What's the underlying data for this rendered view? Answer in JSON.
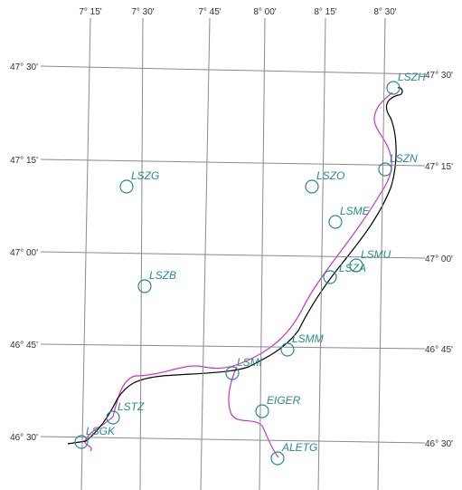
{
  "map": {
    "longitudes": [
      "7° 15'",
      "7° 30'",
      "7° 45'",
      "8° 00'",
      "8° 15'",
      "8° 30'"
    ],
    "latitudes": [
      "47° 30'",
      "47° 15'",
      "47° 00'",
      "46° 45'",
      "46° 30'"
    ],
    "waypoints": [
      "LSZH",
      "LSZN",
      "LSZG",
      "LSZO",
      "LSME",
      "LSMU",
      "LSZA",
      "LSZB",
      "LSMM",
      "LSMI",
      "EIGER",
      "LSTZ",
      "LSGK",
      "ALETG"
    ]
  }
}
